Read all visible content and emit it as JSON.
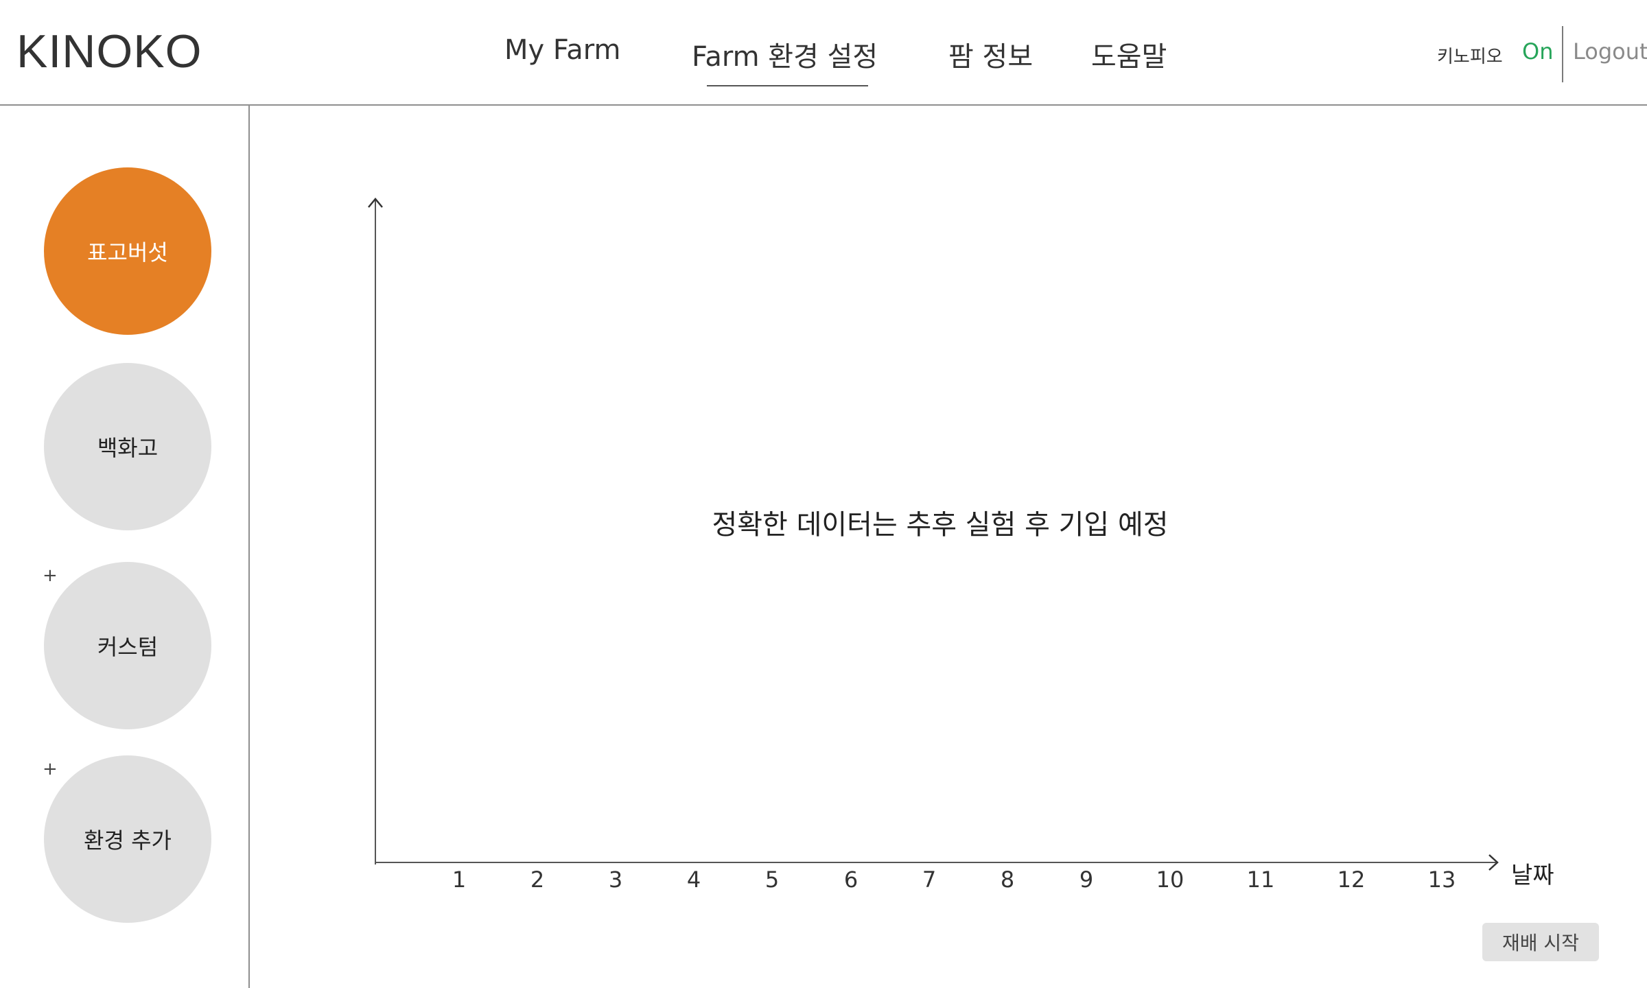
{
  "header": {
    "logo": "KINOKO",
    "nav": [
      {
        "label": "My Farm"
      },
      {
        "label": "Farm 환경 설정"
      },
      {
        "label": "팜 정보"
      },
      {
        "label": "도움말"
      }
    ],
    "user_name": "키노피오",
    "status": "On",
    "logout": "Logout"
  },
  "sidebar": {
    "items": [
      {
        "label": "표고버섯"
      },
      {
        "label": "백화고"
      },
      {
        "label": "커스텀"
      },
      {
        "label": "환경 추가"
      }
    ],
    "plus": "+"
  },
  "chart": {
    "message": "정확한 데이터는 추후 실험 후 기입 예정"
  },
  "chart_data": {
    "type": "line",
    "x": [
      1,
      2,
      3,
      4,
      5,
      6,
      7,
      8,
      9,
      10,
      11,
      12,
      13
    ],
    "series": [],
    "xlabel": "날짜",
    "ylabel": ""
  },
  "actions": {
    "start_label": "재배 시작"
  },
  "colors": {
    "accent": "#e58025",
    "inactive": "#e0e0e0",
    "status_on": "#27a55a"
  }
}
